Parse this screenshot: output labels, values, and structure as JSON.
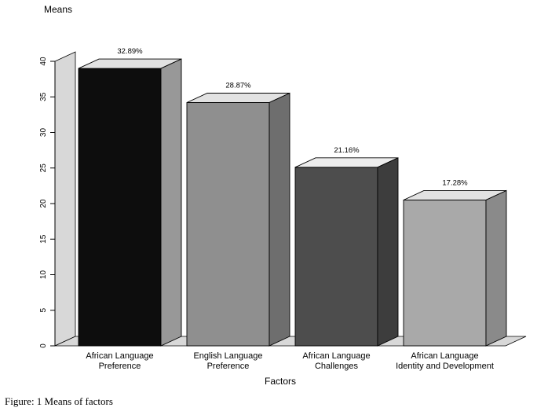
{
  "caption": "Figure: 1 Means of factors",
  "chart_data": {
    "type": "bar",
    "style": "3d-extruded",
    "title": "",
    "ylabel": "Means",
    "xlabel": "Factors",
    "ylim": [
      0,
      40
    ],
    "yticks": [
      0,
      5,
      10,
      15,
      20,
      25,
      30,
      35,
      40
    ],
    "categories": [
      [
        "African Language",
        "Preference"
      ],
      [
        "English Language",
        "Preference"
      ],
      [
        "African Language",
        "Challenges"
      ],
      [
        "African Language",
        "Identity and Development"
      ]
    ],
    "category_slugs": [
      "african-language-preference",
      "english-language-preference",
      "african-language-challenges",
      "african-language-identity-and-development"
    ],
    "values": [
      39.0,
      34.2,
      25.1,
      20.5
    ],
    "bar_labels": [
      "32.89%",
      "28.87%",
      "21.16%",
      "17.28%"
    ],
    "bar_colors": [
      {
        "front": "#0d0d0d",
        "top": "#e2e2e2",
        "side": "#989898"
      },
      {
        "front": "#8f8f8f",
        "top": "#e2e2e2",
        "side": "#6e6e6e"
      },
      {
        "front": "#4d4d4d",
        "top": "#ededed",
        "side": "#3d3d3d"
      },
      {
        "front": "#a9a9a9",
        "top": "#e2e2e2",
        "side": "#8a8a8a"
      }
    ],
    "wall_color": "#d8d8d8",
    "floor_color": "#d8d8d8",
    "axis_color": "#000000",
    "grid": false,
    "legend": false
  }
}
